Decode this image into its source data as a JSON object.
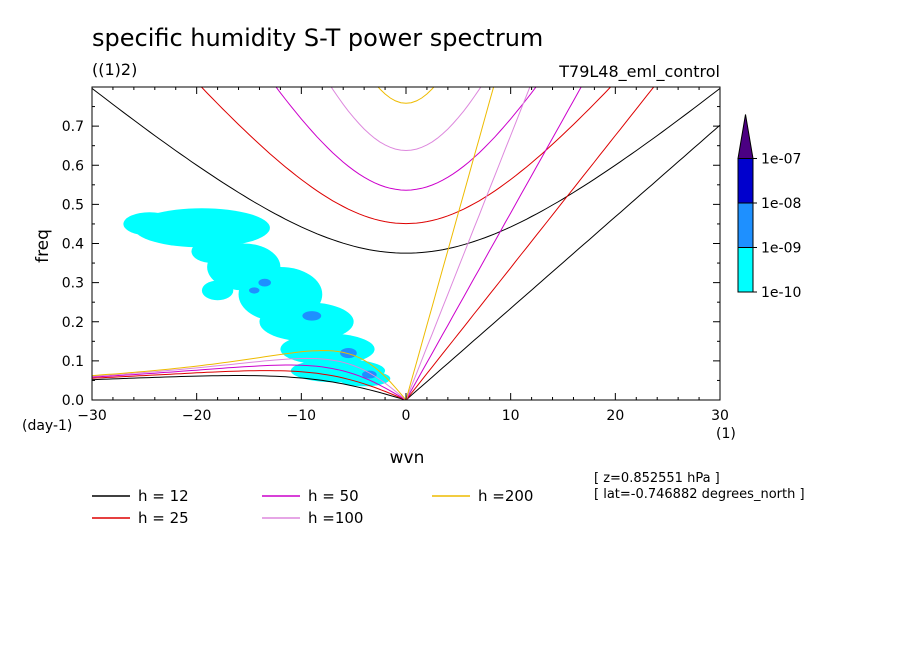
{
  "title": "specific humidity S-T power spectrum",
  "subtitle_left": "((1)2)",
  "subtitle_right": "T79L48_eml_control",
  "notes": [
    "[ z=0.852551 hPa ]",
    "[ lat=-0.746882 degrees_north ]"
  ],
  "chart_data": {
    "type": "heatmap",
    "title": "specific humidity S-T power spectrum",
    "xlabel": "wvn",
    "ylabel": "freq",
    "x_unit": "(1)",
    "y_unit": "(day-1)",
    "xlim": [
      -30,
      30
    ],
    "ylim": [
      0,
      0.8
    ],
    "xticks": [
      -30,
      -20,
      -10,
      0,
      10,
      20,
      30
    ],
    "yticks": [
      0.0,
      0.1,
      0.2,
      0.3,
      0.4,
      0.5,
      0.6,
      0.7
    ],
    "colorbar": {
      "levels": [
        "1e-10",
        "1e-09",
        "1e-08",
        "1e-07"
      ],
      "colors": [
        "#00ffff",
        "#1e90ff",
        "#0000cd",
        "#4b0082"
      ],
      "extend": "max"
    },
    "dispersion_curves": [
      {
        "name": "h = 12",
        "h": 12,
        "color": "#000000"
      },
      {
        "name": "h = 25",
        "h": 25,
        "color": "#dd0000"
      },
      {
        "name": "h = 50",
        "h": 50,
        "color": "#cc00cc"
      },
      {
        "name": "h =100",
        "h": 100,
        "color": "#dd88dd"
      },
      {
        "name": "h =200",
        "h": 200,
        "color": "#eebb00"
      }
    ],
    "power_regions": [
      {
        "level": "1e-10",
        "x": -19.5,
        "y": 0.44,
        "rx": 6.5,
        "ry": 0.05
      },
      {
        "level": "1e-10",
        "x": -24.5,
        "y": 0.45,
        "rx": 2.5,
        "ry": 0.03
      },
      {
        "level": "1e-10",
        "x": -15.5,
        "y": 0.34,
        "rx": 3.5,
        "ry": 0.06
      },
      {
        "level": "1e-10",
        "x": -12.0,
        "y": 0.27,
        "rx": 4.0,
        "ry": 0.07
      },
      {
        "level": "1e-10",
        "x": -9.5,
        "y": 0.2,
        "rx": 4.5,
        "ry": 0.05
      },
      {
        "level": "1e-10",
        "x": -7.5,
        "y": 0.13,
        "rx": 4.5,
        "ry": 0.04
      },
      {
        "level": "1e-10",
        "x": -6.5,
        "y": 0.075,
        "rx": 4.5,
        "ry": 0.03
      },
      {
        "level": "1e-10",
        "x": -18.0,
        "y": 0.28,
        "rx": 1.5,
        "ry": 0.025
      },
      {
        "level": "1e-10",
        "x": -18.5,
        "y": 0.38,
        "rx": 2.0,
        "ry": 0.03
      },
      {
        "level": "1e-10",
        "x": -4.0,
        "y": 0.055,
        "rx": 2.5,
        "ry": 0.02
      },
      {
        "level": "1e-09",
        "x": -9.0,
        "y": 0.215,
        "rx": 0.9,
        "ry": 0.012
      },
      {
        "level": "1e-09",
        "x": -5.5,
        "y": 0.12,
        "rx": 0.8,
        "ry": 0.013
      },
      {
        "level": "1e-09",
        "x": -3.5,
        "y": 0.065,
        "rx": 0.7,
        "ry": 0.01
      },
      {
        "level": "1e-09",
        "x": -13.5,
        "y": 0.3,
        "rx": 0.6,
        "ry": 0.01
      },
      {
        "level": "1e-09",
        "x": -14.5,
        "y": 0.28,
        "rx": 0.5,
        "ry": 0.008
      }
    ]
  },
  "legend": [
    {
      "label": "h = 12",
      "color": "#000000"
    },
    {
      "label": "h = 25",
      "color": "#dd0000"
    },
    {
      "label": "h = 50",
      "color": "#cc00cc"
    },
    {
      "label": "h =100",
      "color": "#dd88dd"
    },
    {
      "label": "h =200",
      "color": "#eebb00"
    }
  ]
}
